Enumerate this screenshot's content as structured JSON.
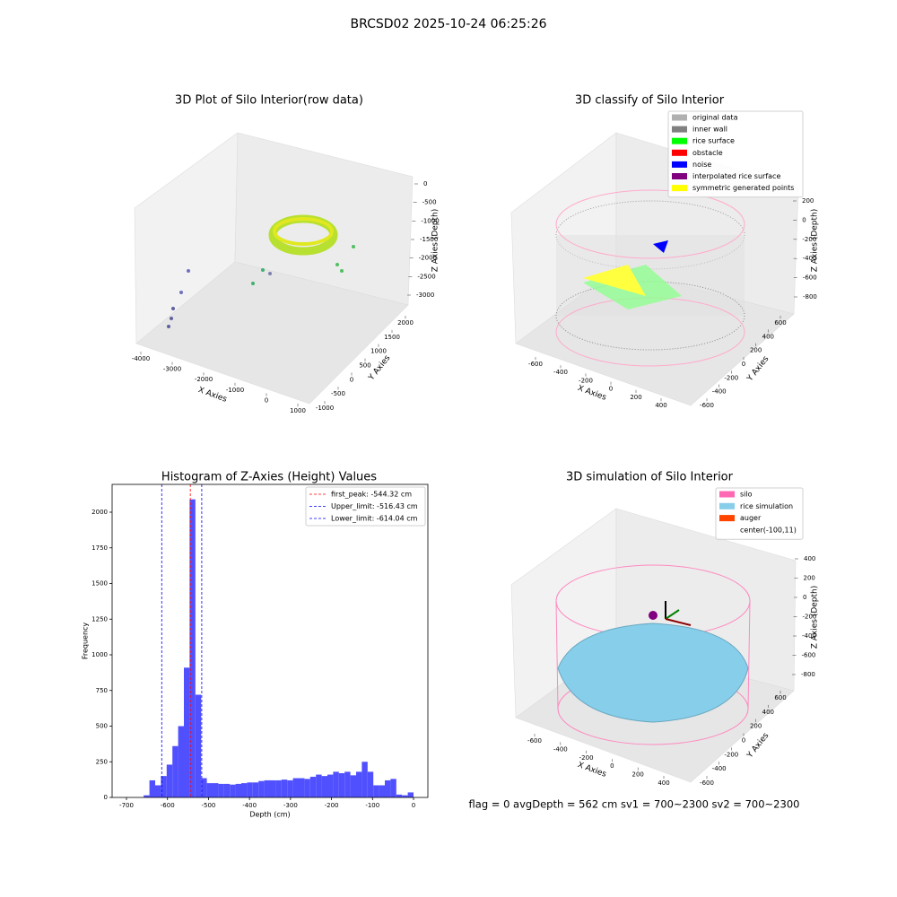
{
  "title": "BRCSD02 2025-10-24 06:25:26",
  "footer": "flag = 0     avgDepth = 562 cm  sv1 = 700~2300  sv2 = 700~2300",
  "chart_data": [
    {
      "type": "scatter3d",
      "title": "3D Plot of Silo Interior(row data)",
      "xlabel": "X Axies",
      "ylabel": "Y Axies",
      "zlabel": "Z Axies (Depth)",
      "xticks": [
        -4000,
        -3000,
        -2000,
        -1000,
        0,
        1000
      ],
      "yticks": [
        -1000,
        -500,
        0,
        500,
        1000,
        1500,
        2000
      ],
      "zticks": [
        0,
        -500,
        -1000,
        -1500,
        -2000,
        -2500,
        -3000
      ]
    },
    {
      "type": "scatter3d",
      "title": "3D classify of Silo Interior",
      "xlabel": "X Axies",
      "ylabel": "Y Axies",
      "zlabel": "Z Axies (Depth)",
      "xticks": [
        -600,
        -400,
        -200,
        0,
        200,
        400
      ],
      "yticks": [
        -600,
        -400,
        -200,
        0,
        200,
        400,
        600
      ],
      "zticks": [
        200,
        0,
        -200,
        -400,
        -600,
        -800
      ],
      "legend": [
        {
          "name": "original data",
          "color": "#b0b0b0"
        },
        {
          "name": "inner wall",
          "color": "#808080"
        },
        {
          "name": "rice surface",
          "color": "#00ff00"
        },
        {
          "name": "obstacle",
          "color": "#ff0000"
        },
        {
          "name": "noise",
          "color": "#0000ff"
        },
        {
          "name": "interpolated rice surface",
          "color": "#800080"
        },
        {
          "name": "symmetric generated points",
          "color": "#ffff00"
        }
      ]
    },
    {
      "type": "histogram",
      "title": "Histogram of Z-Axies (Height) Values",
      "xlabel": "Depth (cm)",
      "ylabel": "Frequency",
      "color": "#5050ff",
      "bins": [
        -700,
        -686,
        -672,
        -658,
        -644,
        -630,
        -616,
        -602,
        -588,
        -574,
        -560,
        -546,
        -532,
        -518,
        -504,
        -490,
        -476,
        -462,
        -448,
        -434,
        -420,
        -406,
        -392,
        -378,
        -364,
        -350,
        -336,
        -322,
        -308,
        -294,
        -280,
        -266,
        -252,
        -238,
        -224,
        -210,
        -196,
        -182,
        -168,
        -154,
        -140,
        -126,
        -112,
        -98,
        -84,
        -70,
        -56,
        -42,
        -28,
        -14,
        0
      ],
      "values": [
        0,
        0,
        0,
        15,
        120,
        85,
        150,
        230,
        360,
        500,
        910,
        2090,
        720,
        135,
        100,
        100,
        95,
        95,
        90,
        95,
        100,
        105,
        105,
        115,
        120,
        120,
        120,
        125,
        120,
        135,
        135,
        130,
        145,
        160,
        150,
        160,
        180,
        170,
        180,
        155,
        180,
        250,
        180,
        85,
        85,
        120,
        130,
        20,
        15,
        35
      ],
      "xlim": [
        -735,
        35
      ],
      "ylim": [
        0,
        2195
      ],
      "xticks": [
        -700,
        -600,
        -500,
        -400,
        -300,
        -200,
        -100,
        0
      ],
      "yticks": [
        0,
        250,
        500,
        750,
        1000,
        1250,
        1500,
        1750,
        2000
      ],
      "vlines": [
        {
          "value": -544.32,
          "label": "first_peak: -544.32 cm",
          "color": "#ff0000"
        },
        {
          "value": -516.43,
          "label": "Upper_limit: -516.43 cm",
          "color": "#0000ff"
        },
        {
          "value": -614.04,
          "label": "Lower_limit: -614.04 cm",
          "color": "#0000ff"
        }
      ]
    },
    {
      "type": "scatter3d",
      "title": "3D simulation of Silo Interior",
      "xlabel": "X Axies",
      "ylabel": "Y Axies",
      "zlabel": "Z Axies (Depth)",
      "xticks": [
        -600,
        -400,
        -200,
        0,
        200,
        400
      ],
      "yticks": [
        -600,
        -400,
        -200,
        0,
        200,
        400,
        600
      ],
      "zticks": [
        400,
        200,
        0,
        -200,
        -400,
        -600,
        -800
      ],
      "legend": [
        {
          "name": "silo",
          "color": "#ff69b4"
        },
        {
          "name": "rice simulation",
          "color": "#87ceeb"
        },
        {
          "name": "auger",
          "color": "#ff4500"
        },
        {
          "name": "center(-100,11)"
        }
      ]
    }
  ]
}
